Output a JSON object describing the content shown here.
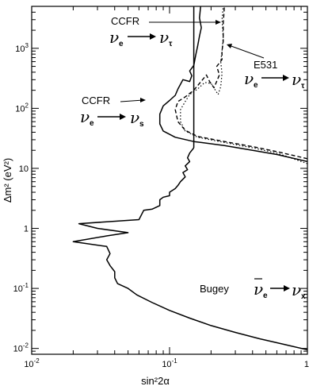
{
  "chart_data": {
    "type": "line",
    "title": "",
    "xlabel": "sin²2α",
    "ylabel": "Δm² (eV²)",
    "xscale": "log",
    "yscale": "log",
    "xlim": [
      0.01,
      1
    ],
    "ylim": [
      0.008,
      5000
    ],
    "grid": false,
    "x_ticks": [
      {
        "value": 0.01,
        "base": "10",
        "exp": "-2"
      },
      {
        "value": 0.1,
        "base": "10",
        "exp": "-1"
      },
      {
        "value": 1,
        "base": "1",
        "exp": ""
      }
    ],
    "y_ticks": [
      {
        "value": 0.01,
        "base": "10",
        "exp": "-2"
      },
      {
        "value": 0.1,
        "base": "10",
        "exp": "-1"
      },
      {
        "value": 1,
        "base": "1",
        "exp": ""
      },
      {
        "value": 10,
        "base": "10",
        "exp": ""
      },
      {
        "value": 100,
        "base": "10",
        "exp": "2"
      },
      {
        "value": 1000,
        "base": "10",
        "exp": "3"
      }
    ],
    "annotations": [
      {
        "id": "ccfr-tau",
        "label": "CCFR",
        "flavor": "ν",
        "from_sub": "e",
        "to_sub": "τ",
        "bar": false
      },
      {
        "id": "ccfr-s",
        "label": "CCFR",
        "flavor": "ν",
        "from_sub": "e",
        "to_sub": "s",
        "bar": false
      },
      {
        "id": "e531",
        "label": "E531",
        "flavor": "ν",
        "from_sub": "e",
        "to_sub": "τ",
        "bar": false
      },
      {
        "id": "bugey",
        "label": "Bugey",
        "flavor": "ν",
        "from_sub": "e",
        "to_sub": "x",
        "bar": true
      }
    ],
    "series": [
      {
        "id": "bugey",
        "style": "solid",
        "points": [
          [
            1.0,
            0.0095
          ],
          [
            0.7,
            0.0115
          ],
          [
            0.45,
            0.0145
          ],
          [
            0.3,
            0.0185
          ],
          [
            0.2,
            0.024
          ],
          [
            0.14,
            0.032
          ],
          [
            0.1,
            0.043
          ],
          [
            0.075,
            0.058
          ],
          [
            0.058,
            0.078
          ],
          [
            0.05,
            0.1
          ],
          [
            0.042,
            0.12
          ],
          [
            0.04,
            0.15
          ],
          [
            0.04,
            0.19
          ],
          [
            0.037,
            0.24
          ],
          [
            0.035,
            0.3
          ],
          [
            0.037,
            0.38
          ],
          [
            0.035,
            0.5
          ],
          [
            0.02,
            0.6
          ],
          [
            0.035,
            0.75
          ],
          [
            0.05,
            0.85
          ],
          [
            0.03,
            1.0
          ],
          [
            0.022,
            1.2
          ],
          [
            0.06,
            1.4
          ],
          [
            0.065,
            2.0
          ],
          [
            0.075,
            2.1
          ],
          [
            0.085,
            2.4
          ],
          [
            0.085,
            3.0
          ],
          [
            0.09,
            3.3
          ],
          [
            0.1,
            3.5
          ],
          [
            0.1,
            4.0
          ],
          [
            0.11,
            4.6
          ],
          [
            0.115,
            5.2
          ],
          [
            0.12,
            6.0
          ],
          [
            0.13,
            7.2
          ],
          [
            0.125,
            8.5
          ],
          [
            0.135,
            9.5
          ],
          [
            0.13,
            11.0
          ],
          [
            0.14,
            13.0
          ],
          [
            0.135,
            15.0
          ],
          [
            0.14,
            18.0
          ],
          [
            0.15,
            22.0
          ]
        ]
      },
      {
        "id": "ccfr-s",
        "style": "solid",
        "points": [
          [
            1.0,
            13.0
          ],
          [
            0.6,
            17.0
          ],
          [
            0.4,
            20.0
          ],
          [
            0.25,
            24.0
          ],
          [
            0.15,
            28.0
          ],
          [
            0.11,
            33.0
          ],
          [
            0.09,
            42.0
          ],
          [
            0.085,
            55.0
          ],
          [
            0.085,
            80.0
          ],
          [
            0.09,
            110.0
          ],
          [
            0.1,
            135.0
          ],
          [
            0.11,
            165.0
          ],
          [
            0.115,
            210.0
          ],
          [
            0.125,
            300.0
          ],
          [
            0.14,
            280.0
          ],
          [
            0.145,
            350.0
          ],
          [
            0.14,
            420.0
          ],
          [
            0.15,
            520.0
          ],
          [
            0.155,
            780.0
          ],
          [
            0.16,
            1100.0
          ],
          [
            0.165,
            1600.0
          ],
          [
            0.17,
            2200.0
          ],
          [
            0.165,
            3200.0
          ],
          [
            0.168,
            5000.0
          ]
        ]
      },
      {
        "id": "ccfr-tau",
        "style": "dashed",
        "points": [
          [
            1.0,
            14.5
          ],
          [
            0.6,
            19.0
          ],
          [
            0.4,
            23.0
          ],
          [
            0.25,
            28.0
          ],
          [
            0.16,
            34.0
          ],
          [
            0.13,
            43.0
          ],
          [
            0.115,
            60.0
          ],
          [
            0.11,
            95.0
          ],
          [
            0.115,
            130.0
          ],
          [
            0.13,
            155.0
          ],
          [
            0.15,
            200.0
          ],
          [
            0.165,
            260.0
          ],
          [
            0.185,
            360.0
          ],
          [
            0.195,
            280.0
          ],
          [
            0.21,
            220.0
          ],
          [
            0.23,
            360.0
          ],
          [
            0.22,
            500.0
          ],
          [
            0.24,
            650.0
          ],
          [
            0.24,
            900.0
          ],
          [
            0.245,
            1300.0
          ],
          [
            0.245,
            2500.0
          ],
          [
            0.25,
            5000.0
          ]
        ]
      },
      {
        "id": "e531",
        "style": "dotted",
        "points": [
          [
            1.0,
            12.0
          ],
          [
            0.6,
            18.0
          ],
          [
            0.4,
            22.0
          ],
          [
            0.25,
            27.0
          ],
          [
            0.16,
            33.0
          ],
          [
            0.13,
            42.0
          ],
          [
            0.12,
            60.0
          ],
          [
            0.12,
            95.0
          ],
          [
            0.13,
            130.0
          ],
          [
            0.14,
            170.0
          ],
          [
            0.16,
            210.0
          ],
          [
            0.18,
            270.0
          ],
          [
            0.2,
            260.0
          ],
          [
            0.215,
            200.0
          ],
          [
            0.225,
            170.0
          ],
          [
            0.235,
            230.0
          ],
          [
            0.24,
            380.0
          ],
          [
            0.235,
            600.0
          ],
          [
            0.24,
            900.0
          ],
          [
            0.245,
            1500.0
          ],
          [
            0.24,
            3000.0
          ],
          [
            0.245,
            5000.0
          ]
        ]
      },
      {
        "id": "vertical-limit",
        "style": "solid",
        "points": [
          [
            0.15,
            22.0
          ],
          [
            0.15,
            5000.0
          ]
        ]
      }
    ]
  }
}
